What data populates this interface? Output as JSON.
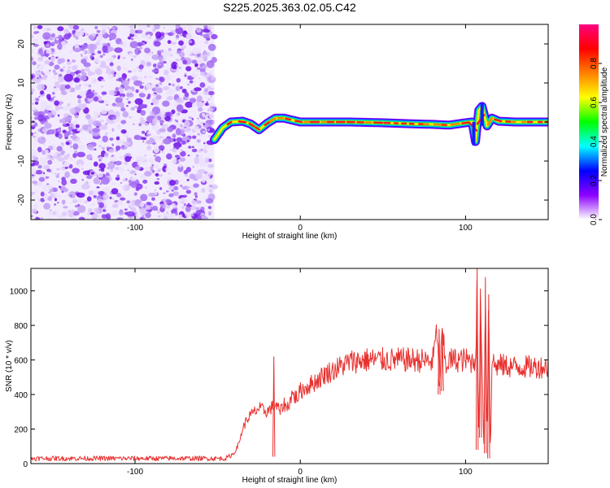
{
  "title": "S225.2025.363.02.05.C42",
  "chart_data": [
    {
      "type": "heatmap",
      "title": "S225.2025.363.02.05.C42",
      "xlabel": "Height of straight line (km)",
      "ylabel": "Frequency (Hz)",
      "xlim": [
        -163,
        150
      ],
      "ylim": [
        -25,
        25
      ],
      "x_ticks": [
        -100,
        0,
        100
      ],
      "y_ticks": [
        -20,
        -10,
        0,
        10,
        20
      ],
      "noise_region_x": [
        -163,
        -52
      ],
      "tone_region_x": [
        -52,
        150
      ],
      "tone_frequency_profile": {
        "x": [
          -52,
          -47,
          -42,
          -35,
          -30,
          -25,
          -20,
          -15,
          -10,
          -5,
          0,
          10,
          30,
          50,
          70,
          80,
          90,
          100,
          104,
          106,
          108,
          110,
          113,
          116,
          120,
          130,
          140,
          150
        ],
        "y": [
          -4.5,
          -1.5,
          0,
          0.2,
          -0.5,
          -2,
          -0.3,
          1,
          1,
          0.5,
          0,
          0,
          0,
          -0.2,
          -0.5,
          -0.6,
          -0.8,
          -0.2,
          0,
          -5,
          3,
          4,
          -1,
          1,
          0.2,
          0,
          0,
          0
        ]
      },
      "colorbar": {
        "label": "Normalized spectral amplitude",
        "range": [
          0,
          1
        ],
        "ticks": [
          0.0,
          0.2,
          0.4,
          0.6,
          0.8
        ],
        "colors": [
          "#ffffff",
          "#8c00ff",
          "#0000ff",
          "#00ffff",
          "#00ff00",
          "#ffff00",
          "#ff8000",
          "#ff0000",
          "#ff0080"
        ]
      }
    },
    {
      "type": "line",
      "xlabel": "Height of straight line (km)",
      "ylabel": "SNR (10 * v/v)",
      "xlim": [
        -163,
        150
      ],
      "ylim": [
        0,
        1130
      ],
      "x_ticks": [
        -100,
        0,
        100
      ],
      "y_ticks": [
        0,
        200,
        400,
        600,
        800,
        1000
      ],
      "line_color": "#e8312f",
      "series": [
        {
          "name": "SNR",
          "x": [
            -163,
            -150,
            -120,
            -90,
            -60,
            -45,
            -40,
            -37,
            -35,
            -32,
            -30,
            -25,
            -20,
            -18,
            -15,
            -12,
            -10,
            -8,
            -5,
            -2,
            0,
            5,
            10,
            15,
            20,
            30,
            40,
            50,
            60,
            70,
            80,
            83,
            84,
            85,
            86,
            88,
            90,
            100,
            104,
            106,
            107,
            108,
            109,
            110,
            111,
            112,
            113,
            114,
            115,
            116,
            118,
            120,
            130,
            140,
            150
          ],
          "y": [
            30,
            30,
            30,
            30,
            30,
            30,
            60,
            120,
            200,
            260,
            280,
            320,
            300,
            320,
            340,
            300,
            350,
            320,
            400,
            380,
            420,
            450,
            480,
            520,
            540,
            590,
            600,
            600,
            600,
            600,
            590,
            780,
            400,
            600,
            760,
            560,
            600,
            600,
            590,
            600,
            1020,
            100,
            950,
            620,
            60,
            1080,
            100,
            980,
            30,
            610,
            560,
            570,
            560,
            560,
            560
          ]
        }
      ],
      "spikes": [
        {
          "x": -16,
          "y": 620,
          "low": 40
        },
        {
          "x": 84,
          "y": 780,
          "low": 400
        },
        {
          "x": 86,
          "y": 760,
          "low": 420
        },
        {
          "x": 107,
          "y": 1130,
          "low": 80
        },
        {
          "x": 109,
          "y": 950,
          "low": 150
        },
        {
          "x": 112,
          "y": 1080,
          "low": 60
        },
        {
          "x": 114,
          "y": 980,
          "low": 30
        }
      ]
    }
  ]
}
